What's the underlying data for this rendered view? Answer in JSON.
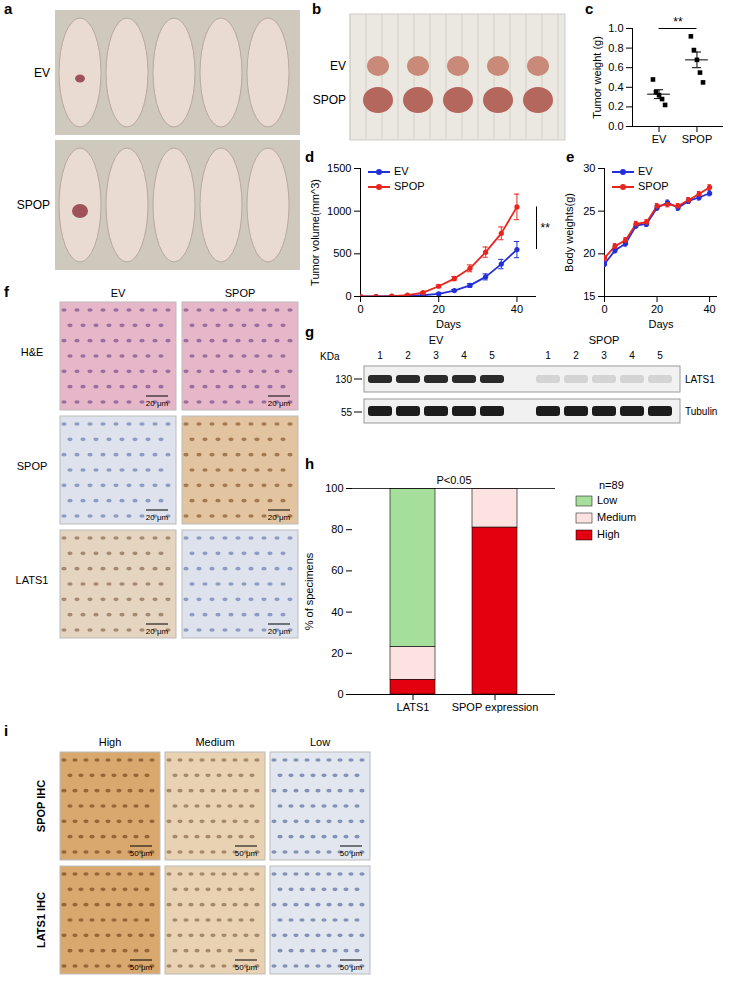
{
  "chart_data": [
    {
      "panel": "c",
      "type": "scatter",
      "ylabel": "Tumor weight (g)",
      "categories": [
        "EV",
        "SPOP"
      ],
      "values": [
        [
          0.48,
          0.35,
          0.32,
          0.28,
          0.22
        ],
        [
          0.92,
          0.78,
          0.68,
          0.55,
          0.45
        ]
      ],
      "mean": [
        0.33,
        0.68
      ],
      "sem": [
        0.045,
        0.08
      ],
      "color": "#000000",
      "marker": "square",
      "ylim": [
        0,
        1
      ],
      "yticks": [
        {
          "value": 0,
          "label": "0.0"
        },
        {
          "value": 0.2,
          "label": "0.2"
        },
        {
          "value": 0.4,
          "label": "0.4"
        },
        {
          "value": 0.6,
          "label": "0.6"
        },
        {
          "value": 0.8,
          "label": "0.8"
        },
        {
          "value": 1,
          "label": "1.0"
        }
      ],
      "annotations": [
        "**"
      ]
    },
    {
      "panel": "d",
      "type": "line",
      "xlabel": "Days",
      "ylabel": "Tumor volume(mm^3)",
      "x": [
        0,
        4,
        8,
        12,
        16,
        20,
        24,
        28,
        32,
        36,
        40
      ],
      "series": [
        {
          "name": "EV",
          "color": "#2330d8",
          "marker": "circle",
          "values": [
            0,
            0,
            3,
            8,
            15,
            30,
            70,
            130,
            230,
            380,
            550
          ],
          "errors": [
            0,
            0,
            1,
            2,
            4,
            8,
            12,
            20,
            35,
            55,
            95
          ]
        },
        {
          "name": "SPOP",
          "color": "#e8261e",
          "marker": "circle",
          "values": [
            0,
            0,
            5,
            15,
            45,
            120,
            210,
            330,
            520,
            740,
            1050
          ],
          "errors": [
            0,
            0,
            2,
            4,
            8,
            15,
            25,
            40,
            60,
            75,
            150
          ]
        }
      ],
      "xlim": [
        0,
        45
      ],
      "xticks": [
        0,
        20,
        40
      ],
      "ylim": [
        0,
        1500
      ],
      "yticks": [
        0,
        500,
        1000,
        1500
      ],
      "legend": "top-left",
      "annotations": [
        "**"
      ]
    },
    {
      "panel": "e",
      "type": "line",
      "xlabel": "Days",
      "ylabel": "Body weights(g)",
      "x": [
        0,
        4,
        8,
        12,
        16,
        20,
        24,
        28,
        32,
        36,
        40
      ],
      "series": [
        {
          "name": "EV",
          "color": "#2330d8",
          "marker": "circle",
          "values": [
            18.8,
            20.4,
            21.2,
            23.3,
            23.5,
            25.4,
            26.0,
            25.4,
            26.2,
            26.6,
            27.1
          ],
          "errors": [
            0.3,
            0.3,
            0.3,
            0.3,
            0.3,
            0.3,
            0.3,
            0.3,
            0.3,
            0.3,
            0.3
          ]
        },
        {
          "name": "SPOP",
          "color": "#e8261e",
          "marker": "circle",
          "values": [
            19.5,
            20.9,
            21.6,
            23.5,
            23.7,
            25.6,
            25.8,
            25.6,
            26.3,
            27.0,
            27.8
          ],
          "errors": [
            0.3,
            0.3,
            0.3,
            0.3,
            0.3,
            0.3,
            0.3,
            0.3,
            0.3,
            0.3,
            0.3
          ]
        }
      ],
      "xlim": [
        0,
        43
      ],
      "xticks": [
        0,
        20,
        40
      ],
      "ylim": [
        15,
        30
      ],
      "yticks": [
        15,
        20,
        25,
        30
      ],
      "legend": "top-left"
    },
    {
      "panel": "h",
      "type": "bar",
      "stacked": true,
      "ylabel": "% of specimens",
      "categories": [
        "LATS1",
        "SPOP expression"
      ],
      "series": [
        {
          "name": "Low",
          "color": "#a6de9c",
          "values": [
            77,
            0
          ]
        },
        {
          "name": "Medium",
          "color": "#fde2e2",
          "values": [
            16,
            19
          ]
        },
        {
          "name": "High",
          "color": "#e3000f",
          "values": [
            7,
            81
          ]
        }
      ],
      "ylim": [
        0,
        100
      ],
      "yticks": [
        0,
        20,
        40,
        60,
        80,
        100
      ],
      "legend": "right",
      "annotations": [
        "n=89",
        "P<0.05"
      ]
    }
  ],
  "images": {
    "a": {
      "panel": "a",
      "rows": [
        "EV",
        "SPOP"
      ]
    },
    "b": {
      "panel": "b",
      "rows": [
        "EV",
        "SPOP"
      ]
    },
    "f": {
      "panel": "f",
      "columns": [
        "EV",
        "SPOP"
      ],
      "rows": [
        "H&E",
        "SPOP",
        "LATS1"
      ],
      "scale_bar": "20 μm"
    },
    "g": {
      "panel": "g",
      "unit": "KDa",
      "markers": [
        "130",
        "55"
      ],
      "groups": [
        "EV",
        "SPOP"
      ],
      "lanes": [
        "1",
        "2",
        "3",
        "4",
        "5"
      ],
      "bands": [
        "LATS1",
        "Tubulin"
      ]
    },
    "i": {
      "panel": "i",
      "columns": [
        "High",
        "Medium",
        "Low"
      ],
      "rows": [
        "SPOP IHC",
        "LATS1 IHC"
      ],
      "scale_bar": "50 μm"
    }
  }
}
